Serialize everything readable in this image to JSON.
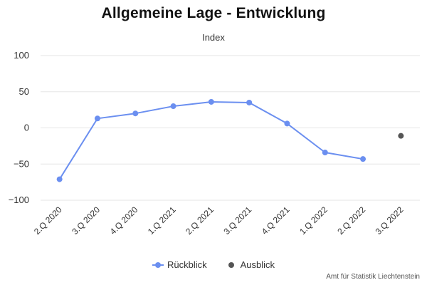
{
  "chart_data": {
    "type": "line",
    "title": "Allgemeine Lage - Entwicklung",
    "subtitle": "Index",
    "categories": [
      "2.Q 2020",
      "3.Q 2020",
      "4.Q 2020",
      "1.Q 2021",
      "2.Q 2021",
      "3.Q 2021",
      "4.Q 2021",
      "1.Q 2022",
      "2.Q 2022",
      "3.Q 2022"
    ],
    "series": [
      {
        "name": "Rückblick",
        "color": "#6b8ff0",
        "values": [
          -71,
          13,
          20,
          30,
          36,
          35,
          6,
          -34,
          -43,
          null
        ]
      },
      {
        "name": "Ausblick",
        "color": "#555555",
        "values": [
          null,
          null,
          null,
          null,
          null,
          null,
          null,
          null,
          null,
          -11
        ]
      }
    ],
    "ylim": [
      -100,
      100
    ],
    "yticks": [
      100,
      50,
      0,
      -50,
      -100
    ],
    "ytick_labels": [
      "100",
      "50",
      "0",
      "−50",
      "−100"
    ],
    "grid": true,
    "legend_position": "bottom-center",
    "credits": "Amt für Statistik Liechtenstein"
  }
}
